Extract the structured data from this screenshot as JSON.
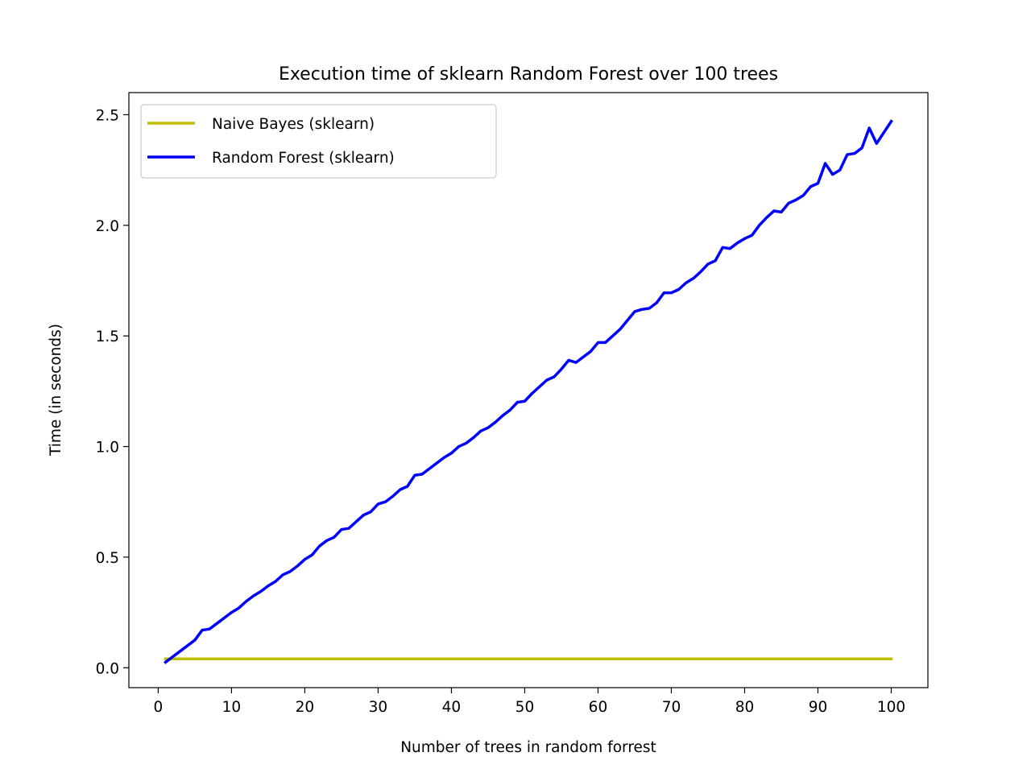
{
  "chart_data": {
    "type": "line",
    "title": "Execution time of sklearn Random Forest over 100 trees",
    "xlabel": "Number of trees in random forrest",
    "ylabel": "Time (in seconds)",
    "xlim": [
      -4,
      105
    ],
    "ylim": [
      -0.09,
      2.6
    ],
    "xticks": [
      0,
      10,
      20,
      30,
      40,
      50,
      60,
      70,
      80,
      90,
      100
    ],
    "xtick_labels": [
      "0",
      "10",
      "20",
      "30",
      "40",
      "50",
      "60",
      "70",
      "80",
      "90",
      "100"
    ],
    "yticks": [
      0.0,
      0.5,
      1.0,
      1.5,
      2.0,
      2.5
    ],
    "ytick_labels": [
      "0.0",
      "0.5",
      "1.0",
      "1.5",
      "2.0",
      "2.5"
    ],
    "grid": false,
    "legend_position": "upper left",
    "series": [
      {
        "name": "Naive Bayes (sklearn)",
        "color": "#bfbf00",
        "x": [
          1,
          100
        ],
        "y": [
          0.04,
          0.04
        ]
      },
      {
        "name": "Random Forest (sklearn)",
        "color": "#0000ff",
        "x": [
          1,
          2,
          3,
          4,
          5,
          6,
          7,
          8,
          9,
          10,
          11,
          12,
          13,
          14,
          15,
          16,
          17,
          18,
          19,
          20,
          21,
          22,
          23,
          24,
          25,
          26,
          27,
          28,
          29,
          30,
          31,
          32,
          33,
          34,
          35,
          36,
          37,
          38,
          39,
          40,
          41,
          42,
          43,
          44,
          45,
          46,
          47,
          48,
          49,
          50,
          51,
          52,
          53,
          54,
          55,
          56,
          57,
          58,
          59,
          60,
          61,
          62,
          63,
          64,
          65,
          66,
          67,
          68,
          69,
          70,
          71,
          72,
          73,
          74,
          75,
          76,
          77,
          78,
          79,
          80,
          81,
          82,
          83,
          84,
          85,
          86,
          87,
          88,
          89,
          90,
          91,
          92,
          93,
          94,
          95,
          96,
          97,
          98,
          99,
          100
        ],
        "y": [
          0.025,
          0.05,
          0.075,
          0.1,
          0.125,
          0.17,
          0.175,
          0.2,
          0.225,
          0.25,
          0.27,
          0.3,
          0.325,
          0.345,
          0.37,
          0.39,
          0.42,
          0.435,
          0.46,
          0.49,
          0.51,
          0.55,
          0.575,
          0.59,
          0.625,
          0.63,
          0.66,
          0.69,
          0.705,
          0.74,
          0.75,
          0.775,
          0.805,
          0.82,
          0.87,
          0.875,
          0.9,
          0.925,
          0.95,
          0.97,
          1.0,
          1.015,
          1.04,
          1.07,
          1.085,
          1.11,
          1.14,
          1.165,
          1.2,
          1.205,
          1.24,
          1.27,
          1.3,
          1.315,
          1.35,
          1.39,
          1.38,
          1.405,
          1.43,
          1.47,
          1.47,
          1.5,
          1.53,
          1.57,
          1.61,
          1.62,
          1.625,
          1.65,
          1.695,
          1.695,
          1.71,
          1.74,
          1.76,
          1.79,
          1.825,
          1.84,
          1.9,
          1.895,
          1.92,
          1.94,
          1.955,
          2.0,
          2.035,
          2.065,
          2.06,
          2.1,
          2.115,
          2.135,
          2.175,
          2.19,
          2.28,
          2.23,
          2.25,
          2.32,
          2.325,
          2.35,
          2.44,
          2.37,
          2.42,
          2.47
        ]
      }
    ]
  }
}
